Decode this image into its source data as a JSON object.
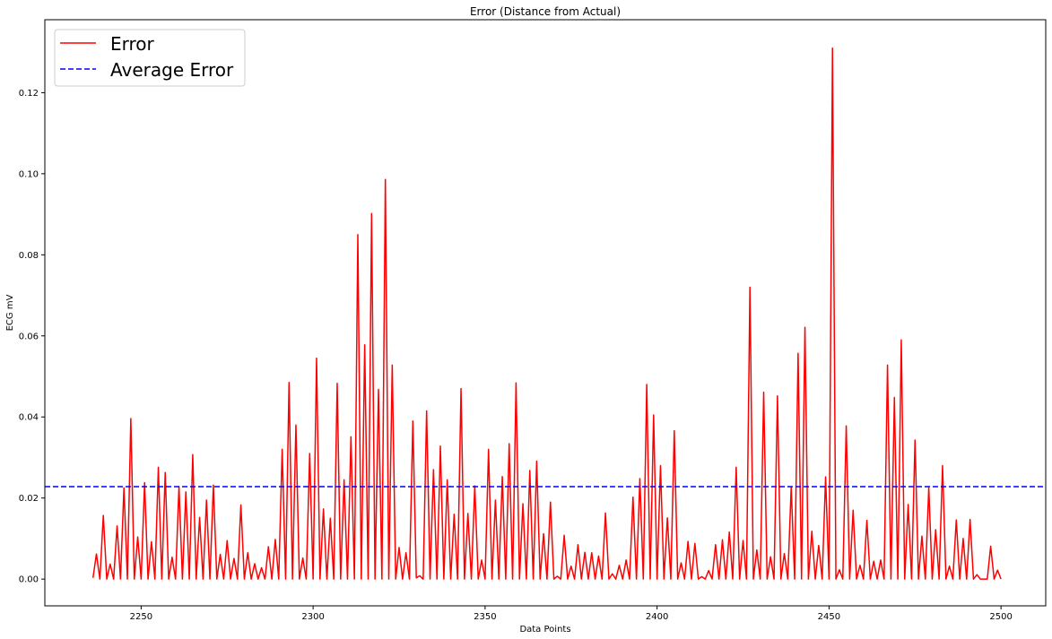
{
  "chart_data": {
    "type": "line",
    "title": "Error (Distance from Actual)",
    "xlabel": "Data Points",
    "ylabel": "ECG mV",
    "xlim": [
      2222,
      2513
    ],
    "ylim": [
      -0.0066,
      0.138
    ],
    "xticks": [
      2250,
      2300,
      2350,
      2400,
      2450,
      2500
    ],
    "yticks": [
      0.0,
      0.02,
      0.04,
      0.06,
      0.08,
      0.1,
      0.12
    ],
    "ytick_labels": [
      "0.00",
      "0.02",
      "0.04",
      "0.06",
      "0.08",
      "0.10",
      "0.12"
    ],
    "legend": {
      "position": "top-left",
      "entries": [
        "Error",
        "Average Error"
      ]
    },
    "series": [
      {
        "name": "Error",
        "color": "#ff0000",
        "style": "solid",
        "x_start": 2236,
        "x_step": 1,
        "values": [
          0.0003,
          0.0062,
          0.0,
          0.0157,
          0.0,
          0.0037,
          0.0,
          0.0131,
          0.0,
          0.0225,
          0.0,
          0.0396,
          0.0,
          0.0104,
          0.0,
          0.0238,
          0.0,
          0.0092,
          0.0,
          0.0276,
          0.0,
          0.0263,
          0.0,
          0.0054,
          0.0,
          0.0228,
          0.0,
          0.0215,
          0.0,
          0.0307,
          0.0,
          0.0152,
          0.0,
          0.0195,
          0.0,
          0.0232,
          0.0,
          0.0061,
          0.0,
          0.0095,
          0.0,
          0.0051,
          0.0,
          0.0183,
          0.0,
          0.0065,
          0.0,
          0.0038,
          0.0,
          0.0028,
          0.0,
          0.008,
          0.0,
          0.0098,
          0.0,
          0.032,
          0.0,
          0.0485,
          0.0,
          0.038,
          0.0,
          0.0052,
          0.0,
          0.031,
          0.0,
          0.0545,
          0.0,
          0.0173,
          0.0,
          0.015,
          0.0,
          0.0483,
          0.0,
          0.0245,
          0.0,
          0.0351,
          0.0,
          0.085,
          0.0,
          0.0578,
          0.0,
          0.0902,
          0.0,
          0.0468,
          0.0,
          0.0986,
          0.0,
          0.0528,
          0.0,
          0.0078,
          0.0,
          0.0065,
          0.0,
          0.039,
          0.0003,
          0.0008,
          0.0,
          0.0415,
          0.0,
          0.027,
          0.0,
          0.0328,
          0.0,
          0.0245,
          0.0,
          0.016,
          0.0,
          0.047,
          0.0,
          0.0162,
          0.0,
          0.023,
          0.0,
          0.0047,
          0.0,
          0.032,
          0.0,
          0.0195,
          0.0,
          0.0253,
          0.0,
          0.0334,
          0.0,
          0.0484,
          0.0,
          0.0186,
          0.0,
          0.0268,
          0.0,
          0.0291,
          0.0,
          0.0112,
          0.0,
          0.019,
          0.0,
          0.0007,
          0.0,
          0.0108,
          0.0,
          0.0032,
          0.0,
          0.0085,
          0.0,
          0.0066,
          0.0,
          0.0065,
          0.0,
          0.0057,
          0.0,
          0.0163,
          0.0,
          0.0013,
          0.0,
          0.0034,
          0.0,
          0.0047,
          0.0,
          0.0202,
          0.0,
          0.0248,
          0.0,
          0.048,
          0.0,
          0.0405,
          0.0,
          0.028,
          0.0,
          0.0151,
          0.0,
          0.0366,
          0.0,
          0.004,
          0.0,
          0.0093,
          0.0,
          0.0088,
          0.0,
          0.0006,
          0.0,
          0.0021,
          0.0,
          0.0085,
          0.0,
          0.0097,
          0.0,
          0.0116,
          0.0,
          0.0276,
          0.0,
          0.0095,
          0.0,
          0.072,
          0.0,
          0.0072,
          0.0,
          0.0461,
          0.0,
          0.0055,
          0.0,
          0.0452,
          0.0,
          0.0063,
          0.0,
          0.0227,
          0.0,
          0.0557,
          0.0,
          0.0621,
          0.0,
          0.0118,
          0.0,
          0.0083,
          0.0,
          0.0252,
          0.0,
          0.131,
          0.0,
          0.0023,
          0.0,
          0.0378,
          0.0,
          0.017,
          0.0,
          0.0034,
          0.0,
          0.0145,
          0.0,
          0.0044,
          0.0,
          0.0047,
          0.0,
          0.0528,
          0.0,
          0.0448,
          0.0,
          0.059,
          0.0,
          0.0184,
          0.0,
          0.0343,
          0.0,
          0.0106,
          0.0,
          0.0225,
          0.0,
          0.0122,
          0.0,
          0.028,
          0.0,
          0.0032,
          0.0,
          0.0146,
          0.0,
          0.01,
          0.0,
          0.0147,
          0.0,
          0.0011,
          0.0,
          0.0,
          0.0,
          0.0081,
          0.0,
          0.0022,
          0.0
        ]
      },
      {
        "name": "Average Error",
        "color": "#0000ff",
        "style": "dashed",
        "values": [
          0.0228
        ]
      }
    ]
  }
}
